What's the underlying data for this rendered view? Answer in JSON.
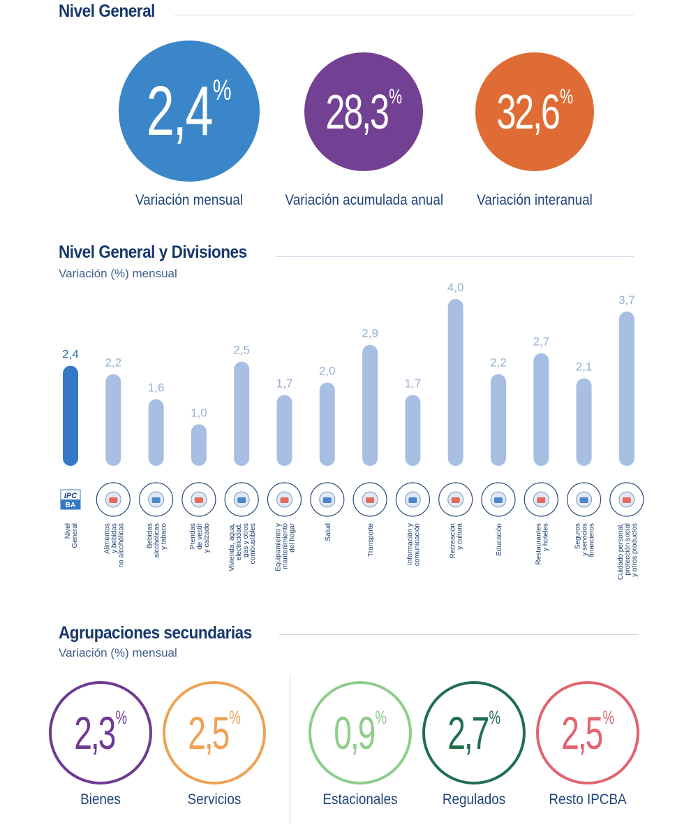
{
  "nivel_general": {
    "title": "Nivel General",
    "cards": [
      {
        "value": "2,4",
        "unit": "%",
        "label": "Variación mensual",
        "color": "#3a86c8"
      },
      {
        "value": "28,3",
        "unit": "%",
        "label": "Variación acumulada anual",
        "color": "#734193"
      },
      {
        "value": "32,6",
        "unit": "%",
        "label": "Variación interanual",
        "color": "#df6c34"
      }
    ]
  },
  "divisiones": {
    "title": "Nivel General y Divisiones",
    "subtitle": "Variación (%) mensual"
  },
  "chart_data": {
    "type": "bar",
    "title": "Nivel General y Divisiones",
    "subtitle": "Variación (%) mensual",
    "ylabel": "Variación (%) mensual",
    "ylim": [
      0,
      4.0
    ],
    "grid": false,
    "categories": [
      [
        "Nivel",
        "General"
      ],
      [
        "Alimentos",
        "y bebidas",
        "no alcohólicas"
      ],
      [
        "Bebidas",
        "alcohólicas",
        "y tabaco"
      ],
      [
        "Prendas",
        "de vestir",
        "y calzado"
      ],
      [
        "Vivienda, agua,",
        "electricidad,",
        "gas y otros",
        "combustibles"
      ],
      [
        "Equipamiento y",
        "mantenimiento",
        "del hogar"
      ],
      [
        "Salud"
      ],
      [
        "Transporte"
      ],
      [
        "Información y",
        "comunicación"
      ],
      [
        "Recreación",
        "y cultura"
      ],
      [
        "Educación"
      ],
      [
        "Restaurantes",
        "y hoteles"
      ],
      [
        "Seguros",
        "y servicios",
        "financieros"
      ],
      [
        "Cuidado personal,",
        "protección social",
        "y otros productos"
      ]
    ],
    "values": [
      2.4,
      2.2,
      1.6,
      1.0,
      2.5,
      1.7,
      2.0,
      2.9,
      1.7,
      4.0,
      2.2,
      2.7,
      2.1,
      3.7
    ],
    "value_labels": [
      "2,4",
      "2,2",
      "1,6",
      "1,0",
      "2,5",
      "1,7",
      "2,0",
      "2,9",
      "1,7",
      "4,0",
      "2,2",
      "2,7",
      "2,1",
      "3,7"
    ],
    "highlight_index": 0,
    "icons": [
      "ipc-ba-logo",
      "food-icon",
      "wine-icon",
      "shirt-icon",
      "house-icon",
      "washing-machine-icon",
      "doctor-icon",
      "plane-car-icon",
      "laptop-icon",
      "theater-masks-icon",
      "school-icon",
      "service-bell-icon",
      "bank-icon",
      "personal-care-icon"
    ],
    "logo_text": [
      "IPC",
      "BA"
    ],
    "colors": {
      "primary": "#3478c6",
      "secondary": "#a8bfe4"
    }
  },
  "agrupaciones": {
    "title": "Agrupaciones secundarias",
    "subtitle": "Variación (%) mensual",
    "items": [
      {
        "value": "2,3",
        "unit": "%",
        "label": "Bienes",
        "color": "#6f3a91"
      },
      {
        "value": "2,5",
        "unit": "%",
        "label": "Servicios",
        "color": "#eea254"
      },
      {
        "value": "0,9",
        "unit": "%",
        "label": "Estacionales",
        "color": "#8fcd8b"
      },
      {
        "value": "2,7",
        "unit": "%",
        "label": "Regulados",
        "color": "#1f6f4e"
      },
      {
        "value": "2,5",
        "unit": "%",
        "label": "Resto IPCBA",
        "color": "#e1646e"
      }
    ]
  }
}
